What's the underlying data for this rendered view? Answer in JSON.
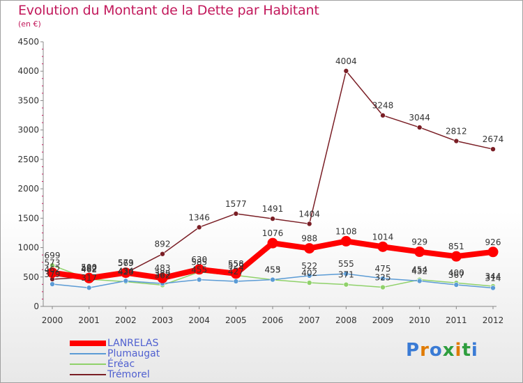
{
  "title": "Evolution du Montant de la Dette par Habitant",
  "unit_label": "(en €)",
  "brand": "Proxiti",
  "colors": {
    "title": "#c2185b",
    "LANRELAS": "#ff0000",
    "Plumaugat": "#5b9bd5",
    "Éréac": "#8fd16a",
    "Trémorel": "#7a1e25"
  },
  "chart_data": {
    "type": "line",
    "title": "Evolution du Montant de la Dette par Habitant",
    "ylabel": "(en €)",
    "xlabel": "",
    "x": [
      "2000",
      "2001",
      "2002",
      "2003",
      "2004",
      "2005",
      "2006",
      "2007",
      "2008",
      "2009",
      "2010",
      "2011",
      "2012"
    ],
    "ylim": [
      0,
      4500
    ],
    "yticks": [
      0,
      500,
      1000,
      1500,
      2000,
      2500,
      3000,
      3500,
      4000,
      4500
    ],
    "grid": false,
    "legend": "bottom-left",
    "series": [
      {
        "name": "LANRELAS",
        "values": [
          573,
          482,
          573,
          483,
          630,
          558,
          1076,
          988,
          1108,
          1014,
          929,
          851,
          926
        ]
      },
      {
        "name": "Plumaugat",
        "values": [
          379,
          317,
          434,
          389,
          455,
          427,
          455,
          522,
          555,
          475,
          432,
          367,
          314
        ]
      },
      {
        "name": "Éréac",
        "values": [
          699,
          462,
          420,
          362,
          585,
          529,
          453,
          402,
          371,
          325,
          454,
          400,
          344
        ]
      },
      {
        "name": "Trémorel",
        "values": [
          462,
          500,
          569,
          892,
          1346,
          1577,
          1491,
          1404,
          4004,
          3248,
          3044,
          2812,
          2674
        ]
      }
    ]
  }
}
